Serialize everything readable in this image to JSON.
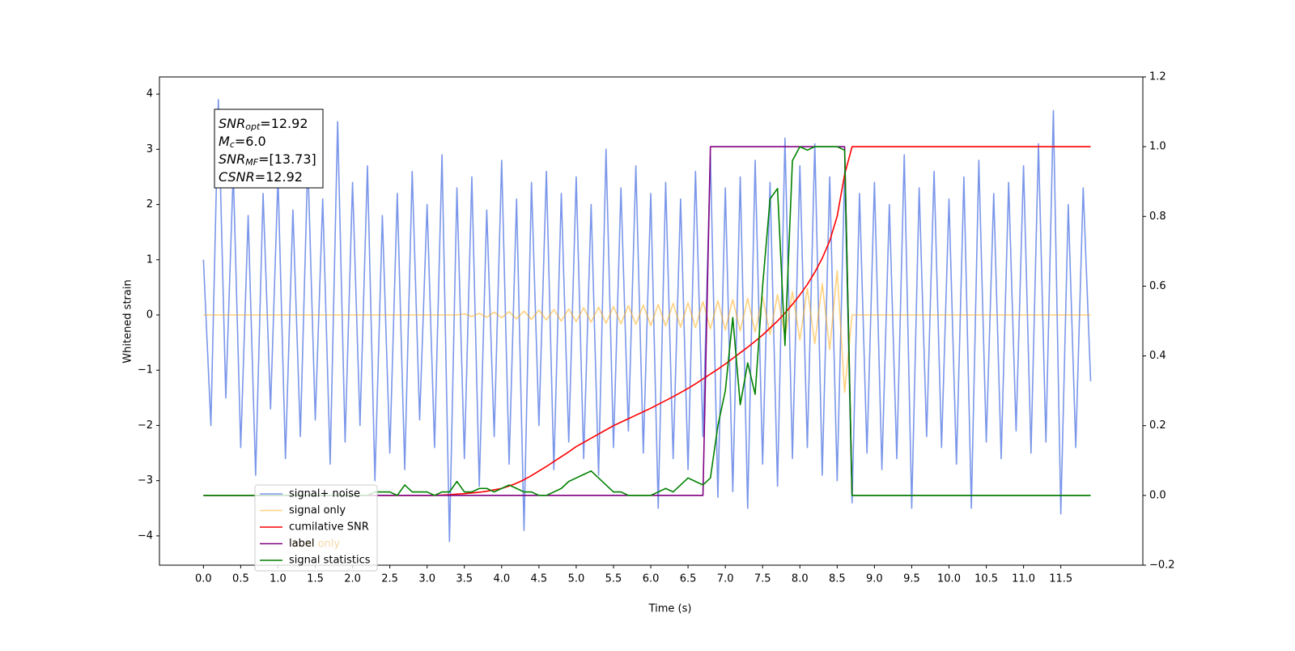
{
  "chart_data": {
    "type": "line",
    "xlabel": "Time (s)",
    "ylabel": "Whitened strain",
    "annotation": [
      [
        "SNR",
        "opt",
        "=12.92"
      ],
      [
        "M",
        "c",
        "=6.0"
      ],
      [
        "SNR",
        "MF",
        "=[13.73]"
      ],
      [
        "CSNR",
        "",
        "=12.92"
      ]
    ],
    "xlim": [
      -0.59,
      12.6
    ],
    "ylim": [
      -4.53,
      4.31
    ],
    "y2lim": [
      -0.2,
      1.2
    ],
    "xticks": [
      {
        "value": 0,
        "label": "0.0"
      },
      0.5,
      {
        "value": 1,
        "label": "1.0"
      },
      1.5,
      {
        "value": 2,
        "label": "2.0"
      },
      2.5,
      {
        "value": 3,
        "label": "3.0"
      },
      3.5,
      {
        "value": 4,
        "label": "4.0"
      },
      4.5,
      {
        "value": 5,
        "label": "5.0"
      },
      5.5,
      {
        "value": 6,
        "label": "6.0"
      },
      6.5,
      {
        "value": 7,
        "label": "7.0"
      },
      7.5,
      {
        "value": 8,
        "label": "8.0"
      },
      8.5,
      {
        "value": 9,
        "label": "9.0"
      },
      9.5,
      {
        "value": 10,
        "label": "10.0"
      },
      10.5,
      {
        "value": 11,
        "label": "11.0"
      },
      11.5
    ],
    "yticks": [
      {
        "value": -4,
        "label": "−4"
      },
      {
        "value": -3,
        "label": "−3"
      },
      {
        "value": -2,
        "label": "−2"
      },
      {
        "value": -1,
        "label": "−1"
      },
      0,
      1,
      2,
      3,
      4
    ],
    "y2ticks": [
      {
        "value": -0.2,
        "label": "−0.2"
      },
      {
        "value": 0,
        "label": "0.0"
      },
      0.2,
      0.4,
      0.6,
      0.8,
      {
        "value": 1,
        "label": "1.0"
      },
      1.2
    ],
    "legend": "lower left",
    "hidden_legend_entry": {
      "name": "label only",
      "color": "#f5d9a8"
    },
    "x": [
      0.0,
      0.1,
      0.2,
      0.3,
      0.4,
      0.5,
      0.6,
      0.7,
      0.8,
      0.9,
      1.0,
      1.1,
      1.2,
      1.3,
      1.4,
      1.5,
      1.6,
      1.7,
      1.8,
      1.9,
      2.0,
      2.1,
      2.2,
      2.3,
      2.4,
      2.5,
      2.6,
      2.7,
      2.8,
      2.9,
      3.0,
      3.1,
      3.2,
      3.3,
      3.4,
      3.5,
      3.6,
      3.7,
      3.8,
      3.9,
      4.0,
      4.1,
      4.2,
      4.3,
      4.4,
      4.5,
      4.6,
      4.7,
      4.8,
      4.9,
      5.0,
      5.1,
      5.2,
      5.3,
      5.4,
      5.5,
      5.6,
      5.7,
      5.8,
      5.9,
      6.0,
      6.1,
      6.2,
      6.3,
      6.4,
      6.5,
      6.6,
      6.7,
      6.8,
      6.9,
      7.0,
      7.1,
      7.2,
      7.3,
      7.4,
      7.5,
      7.6,
      7.7,
      7.8,
      7.9,
      8.0,
      8.1,
      8.2,
      8.3,
      8.4,
      8.5,
      8.6,
      8.7,
      8.8,
      8.9,
      9.0,
      9.1,
      9.2,
      9.3,
      9.4,
      9.5,
      9.6,
      9.7,
      9.8,
      9.9,
      10.0,
      10.1,
      10.2,
      10.3,
      10.4,
      10.5,
      10.6,
      10.7,
      10.8,
      10.9,
      11.0,
      11.1,
      11.2,
      11.3,
      11.4,
      11.5,
      11.6,
      11.7,
      11.8,
      11.9
    ],
    "series": [
      {
        "name": "signal+ noise",
        "color": "#4169e1",
        "alpha": 0.7,
        "values": [
          1.0,
          -2.0,
          3.9,
          -1.5,
          2.6,
          -2.4,
          1.8,
          -2.9,
          2.2,
          -1.7,
          2.5,
          -2.6,
          1.9,
          -2.2,
          2.8,
          -1.9,
          2.1,
          -2.7,
          3.5,
          -2.3,
          2.4,
          -2.0,
          2.7,
          -3.0,
          1.8,
          -2.5,
          2.2,
          -2.8,
          2.6,
          -1.9,
          2.0,
          -2.4,
          2.9,
          -4.1,
          2.3,
          -2.6,
          2.5,
          -3.1,
          1.9,
          -2.2,
          2.8,
          -2.7,
          2.1,
          -3.9,
          2.4,
          -2.0,
          2.6,
          -2.8,
          2.2,
          -2.3,
          2.5,
          -2.6,
          2.0,
          -2.9,
          3.0,
          -2.4,
          2.3,
          -2.1,
          2.7,
          -2.5,
          2.2,
          -3.5,
          2.4,
          -2.6,
          2.1,
          -2.8,
          2.6,
          -2.2,
          2.9,
          -3.3,
          2.3,
          -3.2,
          2.5,
          -3.5,
          2.8,
          -2.7,
          2.4,
          -3.1,
          3.2,
          -2.6,
          2.7,
          -2.4,
          3.1,
          -2.9,
          2.5,
          -3.0,
          2.6,
          -3.4,
          2.2,
          -2.5,
          2.4,
          -2.8,
          2.0,
          -2.6,
          2.9,
          -3.5,
          2.3,
          -2.2,
          2.6,
          -2.4,
          2.1,
          -2.7,
          2.5,
          -3.5,
          2.8,
          -2.3,
          2.2,
          -2.6,
          2.4,
          -2.1,
          2.7,
          -2.5,
          3.1,
          -2.3,
          3.7,
          -3.6,
          2.0,
          -2.4,
          2.3,
          -1.2
        ]
      },
      {
        "name": "signal only",
        "color": "#ffa500",
        "alpha": 0.5,
        "values": [
          0,
          0,
          0,
          0,
          0,
          0,
          0,
          0,
          0,
          0,
          0,
          0,
          0,
          0,
          0,
          0,
          0,
          0,
          0,
          0,
          0,
          0,
          0,
          0,
          0,
          0,
          0,
          0,
          0,
          0,
          0,
          0,
          0,
          0,
          0,
          0.02,
          -0.03,
          0.03,
          -0.04,
          0.05,
          -0.05,
          0.06,
          -0.07,
          0.07,
          -0.08,
          0.09,
          -0.09,
          0.1,
          -0.11,
          0.11,
          -0.12,
          0.13,
          -0.13,
          0.14,
          -0.15,
          0.15,
          -0.16,
          0.17,
          -0.17,
          0.18,
          -0.19,
          0.19,
          -0.2,
          0.21,
          -0.22,
          0.22,
          -0.23,
          0.24,
          -0.25,
          0.26,
          -0.27,
          0.28,
          -0.29,
          0.3,
          -0.31,
          0.33,
          -0.35,
          0.37,
          -0.39,
          0.42,
          -0.45,
          0.48,
          -0.52,
          0.57,
          -0.63,
          0.8,
          -1.4,
          0,
          0,
          0,
          0,
          0,
          0,
          0,
          0,
          0,
          0,
          0,
          0,
          0,
          0,
          0,
          0,
          0,
          0,
          0,
          0,
          0,
          0,
          0,
          0,
          0,
          0,
          0,
          0,
          0,
          0,
          0,
          0,
          0
        ]
      },
      {
        "name": "cumilative SNR",
        "color": "#ff0000",
        "alpha": 1,
        "axis": "y2",
        "values": [
          0,
          0,
          0,
          0,
          0,
          0,
          0,
          0,
          0,
          0,
          0,
          0,
          0,
          0,
          0,
          0,
          0,
          0,
          0,
          0,
          0,
          0,
          0,
          0,
          0,
          0,
          0,
          0,
          0,
          0,
          0,
          0.0,
          0.001,
          0.002,
          0.004,
          0.005,
          0.007,
          0.009,
          0.012,
          0.016,
          0.02,
          0.027,
          0.035,
          0.045,
          0.057,
          0.07,
          0.083,
          0.097,
          0.111,
          0.125,
          0.14,
          0.152,
          0.164,
          0.176,
          0.188,
          0.2,
          0.21,
          0.22,
          0.23,
          0.24,
          0.25,
          0.261,
          0.272,
          0.283,
          0.295,
          0.307,
          0.32,
          0.334,
          0.348,
          0.362,
          0.377,
          0.393,
          0.409,
          0.425,
          0.442,
          0.46,
          0.48,
          0.5,
          0.523,
          0.548,
          0.575,
          0.605,
          0.64,
          0.68,
          0.73,
          0.8,
          0.92,
          1,
          1,
          1,
          1,
          1,
          1,
          1,
          1,
          1,
          1,
          1,
          1,
          1,
          1,
          1,
          1,
          1,
          1,
          1,
          1,
          1,
          1,
          1,
          1,
          1,
          1,
          1,
          1,
          1,
          1,
          1,
          1,
          1
        ]
      },
      {
        "name": "label",
        "color": "#800080",
        "alpha": 1,
        "axis": "y2",
        "values": [
          0,
          0,
          0,
          0,
          0,
          0,
          0,
          0,
          0,
          0,
          0,
          0,
          0,
          0,
          0,
          0,
          0,
          0,
          0,
          0,
          0,
          0,
          0,
          0,
          0,
          0,
          0,
          0,
          0,
          0,
          0,
          0,
          0,
          0,
          0,
          0,
          0,
          0,
          0,
          0,
          0,
          0,
          0,
          0,
          0,
          0,
          0,
          0,
          0,
          0,
          0,
          0,
          0,
          0,
          0,
          0,
          0,
          0,
          0,
          0,
          0,
          0,
          0,
          0,
          0,
          0,
          0,
          0,
          1,
          1,
          1,
          1,
          1,
          1,
          1,
          1,
          1,
          1,
          1,
          1,
          1,
          1,
          1,
          1,
          1,
          1,
          1,
          0,
          0,
          0,
          0,
          0,
          0,
          0,
          0,
          0,
          0,
          0,
          0,
          0,
          0,
          0,
          0,
          0,
          0,
          0,
          0,
          0,
          0,
          0,
          0,
          0,
          0,
          0,
          0,
          0,
          0,
          0,
          0,
          0
        ]
      },
      {
        "name": "signal statistics",
        "color": "#008000",
        "alpha": 1,
        "axis": "y2",
        "values": [
          0,
          0,
          0,
          0,
          0,
          0,
          0,
          0,
          0,
          0,
          0,
          0,
          0,
          0,
          0,
          0,
          0,
          0,
          0,
          0,
          0,
          0,
          0,
          0.01,
          0.01,
          0.01,
          0,
          0.03,
          0.01,
          0.01,
          0.01,
          0,
          0.01,
          0.01,
          0.04,
          0.01,
          0.01,
          0.02,
          0.02,
          0.01,
          0.02,
          0.03,
          0.02,
          0.01,
          0.01,
          0,
          0,
          0.01,
          0.02,
          0.04,
          0.05,
          0.06,
          0.07,
          0.05,
          0.03,
          0.01,
          0.01,
          0,
          0,
          0,
          0,
          0.01,
          0.02,
          0.01,
          0.03,
          0.05,
          0.04,
          0.03,
          0.05,
          0.2,
          0.3,
          0.51,
          0.26,
          0.38,
          0.29,
          0.6,
          0.85,
          0.88,
          0.43,
          0.96,
          1.0,
          0.99,
          1.0,
          1.0,
          1.0,
          1.0,
          0.99,
          0,
          0,
          0,
          0,
          0,
          0,
          0,
          0,
          0,
          0,
          0,
          0,
          0,
          0,
          0,
          0,
          0,
          0,
          0,
          0,
          0,
          0,
          0,
          0,
          0,
          0,
          0,
          0,
          0,
          0,
          0,
          0,
          0
        ]
      }
    ]
  }
}
